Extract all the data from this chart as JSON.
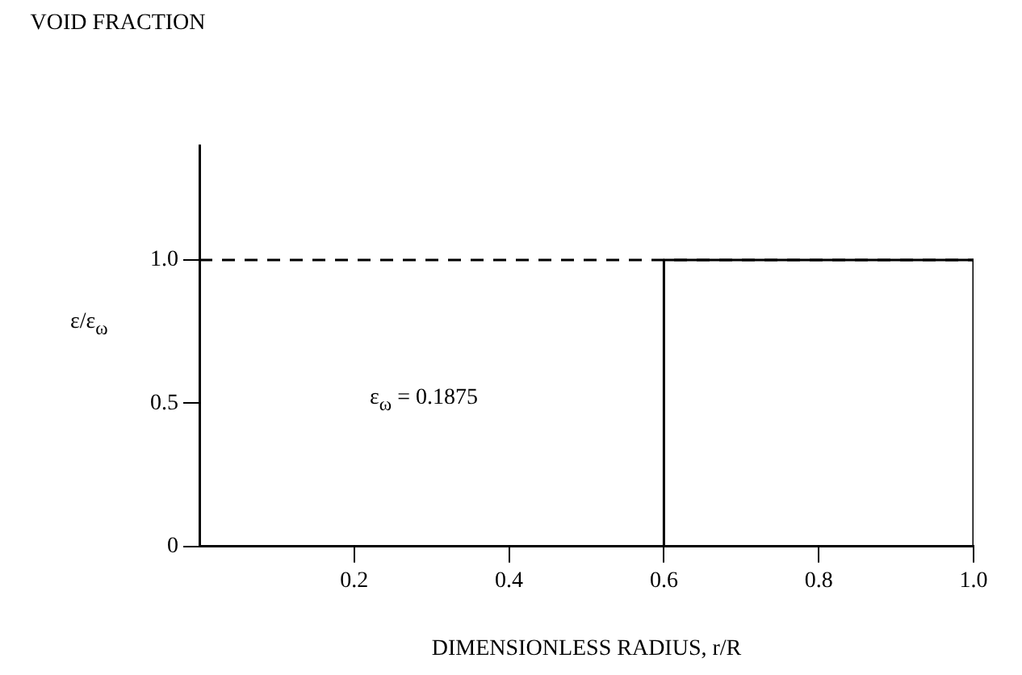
{
  "chart_data": {
    "type": "line",
    "xlabel": "DIMENSIONLESS RADIUS, r/R",
    "ylabel": "VOID FRACTION",
    "annotations": [
      "ε/ε$_{ω}$",
      "ε$_{ω}$ = 0.1875"
    ],
    "x": [
      0,
      0.6,
      0.6,
      1.0,
      1.0
    ],
    "series": [
      {
        "color": "#000000",
        "values": [
          0,
          0,
          1,
          1,
          0
        ]
      }
    ],
    "xlim": [
      0,
      1.0
    ],
    "xticks": [
      0.2,
      0.4,
      0.6,
      0.8,
      {
        "value": 1.0,
        "label": "1.0"
      }
    ],
    "ylim": [
      0,
      1.4
    ],
    "yticks": [
      0,
      0.5,
      {
        "value": 1.0,
        "label": "1.0"
      }
    ],
    "ref_lines": [
      {
        "axis": "y",
        "value": 1.0,
        "line_style": "dashed",
        "color": "#000000"
      }
    ],
    "grid": false,
    "legend": false,
    "marker": "none",
    "line_style": "solid"
  }
}
